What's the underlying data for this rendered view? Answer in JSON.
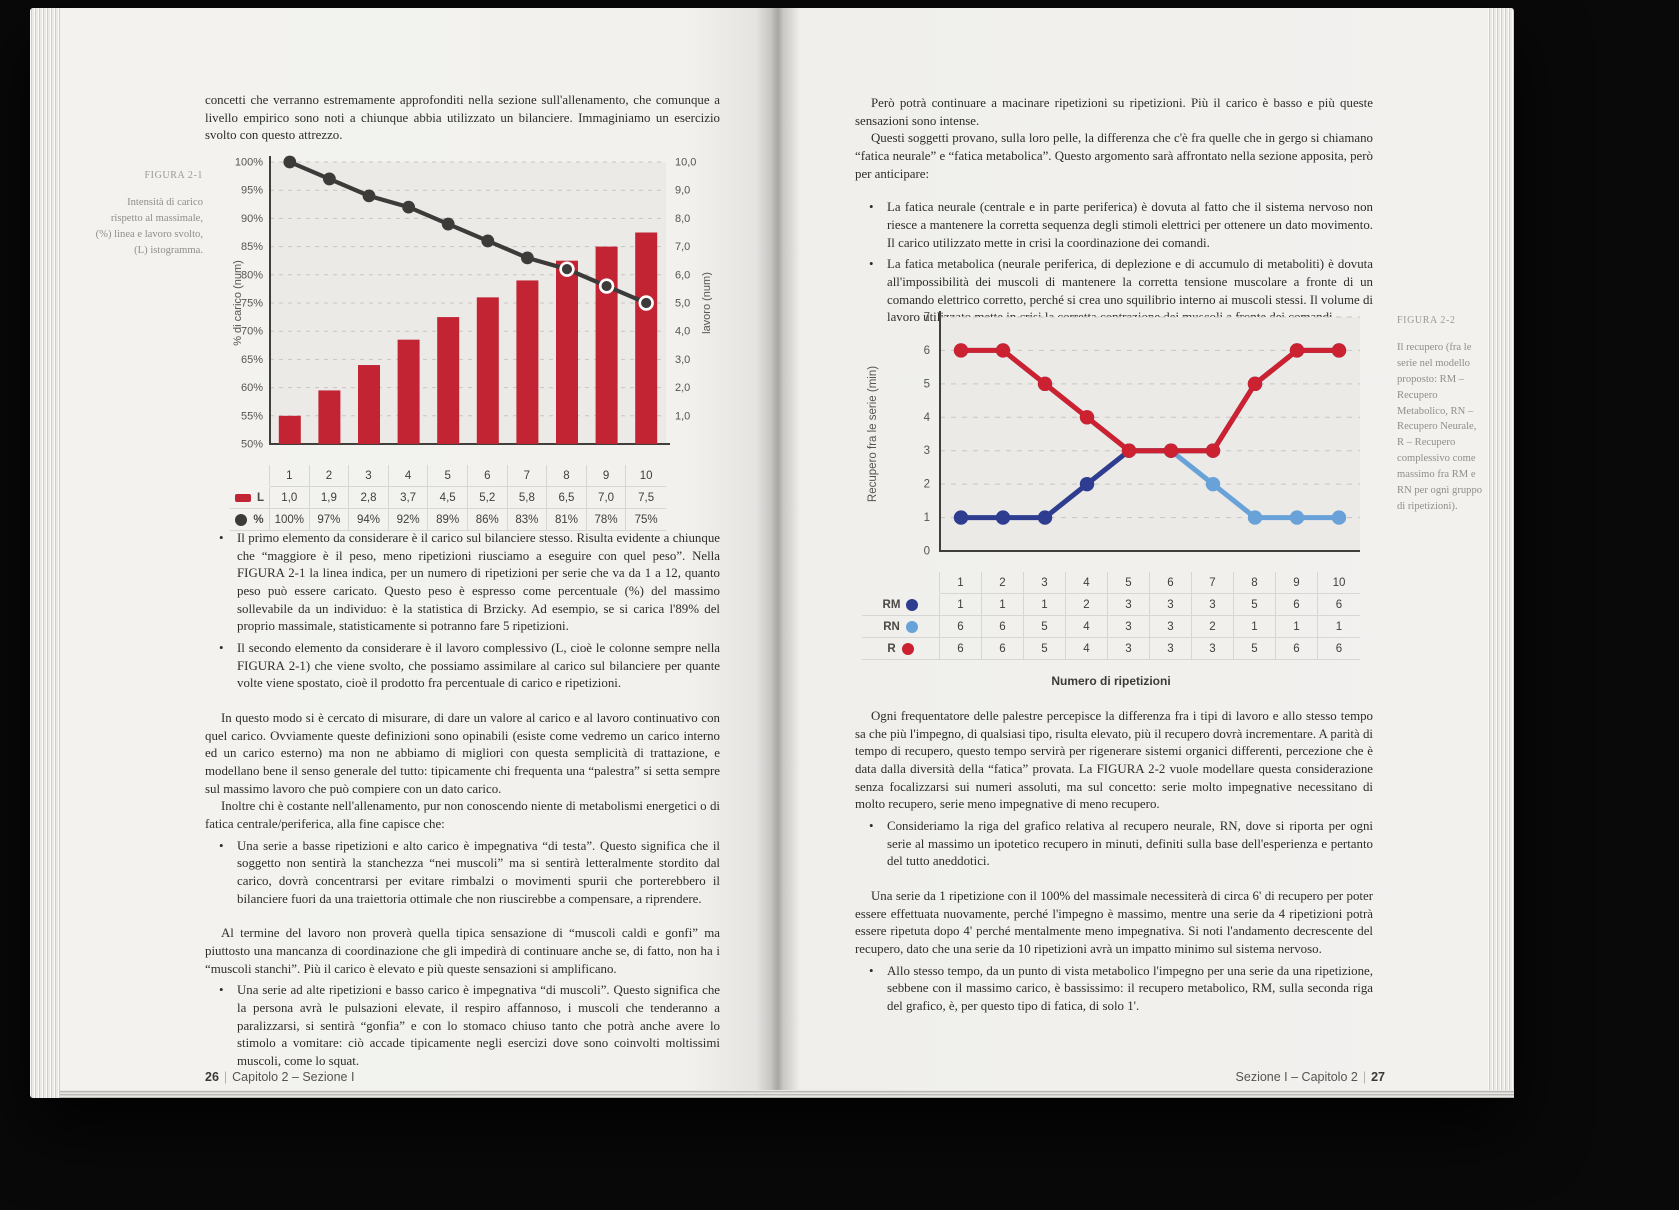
{
  "left_page": {
    "intro": "concetti che verranno estremamente approfonditi nella sezione sull'allenamento, che comunque a livello empirico sono noti a chiunque abbia utilizzato un bilanciere. Immaginiamo un esercizio svolto con questo attrezzo.",
    "figure": {
      "label": "FIGURA 2-1",
      "caption": "Intensità di carico rispetto al massimale, (%) linea e lavoro svolto, (L) istogramma."
    },
    "bullets_top": [
      "Il primo elemento da considerare è il carico sul bilanciere stesso. Risulta evidente a chiunque che “maggiore è il peso, meno ripetizioni riusciamo a eseguire con quel peso”. Nella FIGURA 2-1 la linea indica, per un numero di ripetizioni per serie che va da 1 a 12, quanto peso può essere caricato. Questo peso è espresso come percentuale (%) del massimo sollevabile da un individuo: è la statistica di Brzicky. Ad esempio, se si carica l'89% del proprio massimale, statisticamente si potranno fare 5 ripetizioni.",
      "Il secondo elemento da considerare è il lavoro complessivo (L, cioè le colonne sempre nella FIGURA 2-1) che viene svolto, che possiamo assimilare al carico sul bilanciere per quante volte viene spostato, cioè il prodotto fra percentuale di carico e ripetizioni."
    ],
    "para_measure": "In questo modo si è cercato di misurare, di dare un valore al carico e al lavoro continuativo con quel carico. Ovviamente queste definizioni sono opinabili (esiste come vedremo un carico interno ed un carico esterno) ma non ne abbiamo di migliori con questa semplicità di trattazione, e modellano bene il senso generale del tutto: tipicamente chi frequenta una “palestra” si setta sempre sul massimo lavoro che può compiere con un dato carico.",
    "para_inoltre": "Inoltre chi è costante nell'allenamento, pur non conoscendo niente di metabolismi energetici o di fatica centrale/periferica, alla fine capisce che:",
    "bullet_basse": "Una serie a basse ripetizioni e alto carico è impegnativa “di testa”. Questo significa che il soggetto non sentirà la stanchezza “nei muscoli” ma si sentirà letteralmente stordito dal carico, dovrà concentrarsi per evitare rimbalzi o movimenti spurii che porterebbero il bilanciere fuori da una traiettoria ottimale che non riuscirebbe a compensare, a riprendere.",
    "para_termine": "Al termine del lavoro non proverà quella tipica sensazione di “muscoli caldi e gonfi” ma piuttosto una mancanza di coordinazione che gli impedirà di continuare anche se, di fatto, non ha i “muscoli stanchi”. Più il carico è elevato e più queste sensazioni si amplificano.",
    "bullet_alte": "Una serie ad alte ripetizioni e basso carico è impegnativa “di muscoli”. Questo significa che la persona avrà le pulsazioni elevate, il respiro affannoso, i muscoli che tenderanno a paralizzarsi, si sentirà “gonfia” e con lo stomaco chiuso tanto che potrà anche avere lo stimolo a vomitare: ciò accade tipicamente negli esercizi dove sono coinvolti moltissimi muscoli, come lo squat.",
    "footer": {
      "page_number": "26",
      "separator": "|",
      "section": "Capitolo 2 – Sezione I"
    }
  },
  "right_page": {
    "para_pero": "Però potrà continuare a macinare ripetizioni su ripetizioni. Più il carico è basso e più queste sensazioni sono intense.",
    "para_questi": "Questi soggetti provano, sulla loro pelle, la differenza che c'è fra quelle che in gergo si chiamano “fatica neurale” e “fatica metabolica”. Questo argomento sarà affrontato nella sezione apposita, però per anticipare:",
    "bullets_fatica": [
      "La fatica neurale (centrale e in parte periferica) è dovuta al fatto che il sistema nervoso non riesce a mantenere la corretta sequenza degli stimoli elettrici per ottenere un dato movimento. Il carico utilizzato mette in crisi la coordinazione dei comandi.",
      "La fatica metabolica (neurale periferica, di deplezione e di accumulo di metaboliti) è dovuta all'impossibilità dei muscoli di mantenere la corretta tensione muscolare a fronte di un comando elettrico corretto, perché si crea uno squilibrio interno ai muscoli stessi. Il volume di lavoro utilizzato mette in crisi la corretta contrazione dei muscoli a fronte dei comandi."
    ],
    "figure": {
      "label": "FIGURA 2-2",
      "caption": "Il recupero (fra le serie nel modello proposto: RM – Recupero Metabolico, RN – Recupero Neurale, R – Recupero complessivo come massimo fra RM e RN per ogni gruppo di ripetizioni)."
    },
    "para_ogni": "Ogni frequentatore delle palestre percepisce la differenza fra i tipi di lavoro e allo stesso tempo sa che più l'impegno, di qualsiasi tipo, risulta elevato, più il recupero dovrà incrementare. A parità di tempo di recupero, questo tempo servirà per rigenerare sistemi organici differenti, percezione che è data dalla diversità della “fatica” provata. La FIGURA 2-2 vuole modellare questa considerazione senza focalizzarsi sui numeri assoluti, ma sul concetto: serie molto impegnative necessitano di molto recupero, serie meno impegnative di meno recupero.",
    "bullet_consideriamo": "Consideriamo la riga del grafico relativa al recupero neurale, RN, dove si riporta per ogni serie al massimo un ipotetico recupero in minuti, definiti sulla base dell'esperienza e pertanto del tutto aneddotici.",
    "para_una_serie": "Una serie da 1 ripetizione con il 100% del massimale necessiterà di circa 6' di recupero per poter essere effettuata nuovamente, perché l'impegno è massimo, mentre una serie da 4 ripetizioni potrà essere ripetuta dopo 4' perché mentalmente meno impegnativa. Si noti l'andamento decrescente del recupero, dato che una serie da 10 ripetizioni avrà un impatto minimo sul sistema nervoso.",
    "bullet_allo_stesso": "Allo stesso tempo, da un punto di vista metabolico l'impegno per una serie da una ripetizione, sebbene con il massimo carico, è bassissimo: il recupero metabolico, RM, sulla seconda riga del grafico, è, per questo tipo di fatica, di solo 1'.",
    "footer": {
      "section": "Sezione I – Capitolo 2",
      "separator": "|",
      "page_number": "27"
    }
  },
  "chart_data": [
    {
      "type": "bar",
      "categories": [
        "1",
        "2",
        "3",
        "4",
        "5",
        "6",
        "7",
        "8",
        "9",
        "10"
      ],
      "series": [
        {
          "name": "L",
          "type": "bar",
          "axis": "right",
          "color": "#c22433",
          "values": [
            1.0,
            1.9,
            2.8,
            3.7,
            4.5,
            5.2,
            5.8,
            6.5,
            7.0,
            7.5
          ]
        },
        {
          "name": "%",
          "type": "line",
          "axis": "left",
          "color": "#3c3b39",
          "values": [
            100,
            97,
            94,
            92,
            89,
            86,
            83,
            81,
            78,
            75
          ]
        }
      ],
      "left_axis": {
        "label": "% di carico (num)",
        "min": 50,
        "max": 100,
        "step": 5,
        "ticks": [
          "50%",
          "55%",
          "60%",
          "65%",
          "70%",
          "75%",
          "80%",
          "85%",
          "90%",
          "95%",
          "100%"
        ]
      },
      "right_axis": {
        "label": "lavoro (num)",
        "min": 1,
        "max": 10,
        "step": 1,
        "ticks": [
          "1,0",
          "2,0",
          "3,0",
          "4,0",
          "5,0",
          "6,0",
          "7,0",
          "8,0",
          "9,0",
          "10,0"
        ]
      },
      "grid": true,
      "legend_position": "table-left",
      "table": {
        "header": [
          "1",
          "2",
          "3",
          "4",
          "5",
          "6",
          "7",
          "8",
          "9",
          "10"
        ],
        "rows": [
          {
            "label": "L",
            "swatch": "bar",
            "color": "#c22433",
            "cells": [
              "1,0",
              "1,9",
              "2,8",
              "3,7",
              "4,5",
              "5,2",
              "5,8",
              "6,5",
              "7,0",
              "7,5"
            ]
          },
          {
            "label": "%",
            "swatch": "dot",
            "color": "#3c3b39",
            "cells": [
              "100%",
              "97%",
              "94%",
              "92%",
              "89%",
              "86%",
              "83%",
              "81%",
              "78%",
              "75%"
            ]
          }
        ]
      }
    },
    {
      "type": "line",
      "x": [
        1,
        2,
        3,
        4,
        5,
        6,
        7,
        8,
        9,
        10
      ],
      "series": [
        {
          "name": "RM",
          "color": "#2e3d8f",
          "values": [
            1,
            1,
            1,
            2,
            3,
            3,
            3,
            5,
            6,
            6
          ]
        },
        {
          "name": "RN",
          "color": "#68a2d8",
          "values": [
            6,
            6,
            5,
            4,
            3,
            3,
            2,
            1,
            1,
            1
          ]
        },
        {
          "name": "R",
          "color": "#cc2130",
          "values": [
            6,
            6,
            5,
            4,
            3,
            3,
            3,
            5,
            6,
            6
          ]
        }
      ],
      "ylabel": "Recupero fra le serie (min)",
      "xlabel": "Numero di ripetizioni",
      "ylim": [
        0,
        7
      ],
      "grid": true,
      "table": {
        "header": [
          "1",
          "2",
          "3",
          "4",
          "5",
          "6",
          "7",
          "8",
          "9",
          "10"
        ],
        "rows": [
          {
            "label": "RM",
            "color": "#2e3d8f",
            "cells": [
              "1",
              "1",
              "1",
              "2",
              "3",
              "3",
              "3",
              "5",
              "6",
              "6"
            ]
          },
          {
            "label": "RN",
            "color": "#68a2d8",
            "cells": [
              "6",
              "6",
              "5",
              "4",
              "3",
              "3",
              "2",
              "1",
              "1",
              "1"
            ]
          },
          {
            "label": "R",
            "color": "#cc2130",
            "cells": [
              "6",
              "6",
              "5",
              "4",
              "3",
              "3",
              "3",
              "5",
              "6",
              "6"
            ]
          }
        ]
      }
    }
  ]
}
